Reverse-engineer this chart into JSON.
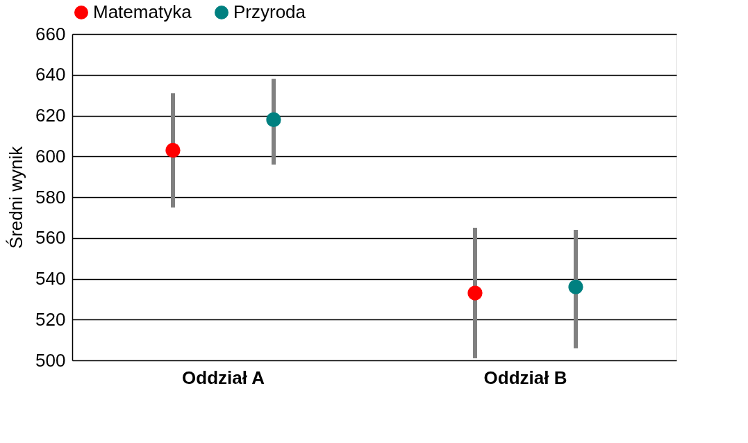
{
  "chart_data": {
    "type": "scatter",
    "ylabel": "Średni wynik",
    "categories": [
      "Oddział A",
      "Oddział B"
    ],
    "series": [
      {
        "name": "Matematyka",
        "color": "#ff0000",
        "values": [
          603,
          533
        ],
        "errors": [
          [
            575,
            631
          ],
          [
            501,
            565
          ]
        ]
      },
      {
        "name": "Przyroda",
        "color": "#008080",
        "values": [
          618,
          536
        ],
        "errors": [
          [
            596,
            638
          ],
          [
            506,
            564
          ]
        ]
      }
    ],
    "ylim": [
      500,
      660
    ],
    "yticks": [
      500,
      520,
      540,
      560,
      580,
      600,
      620,
      640,
      660
    ],
    "grid": "y",
    "legend": "top",
    "marker": "circle"
  }
}
